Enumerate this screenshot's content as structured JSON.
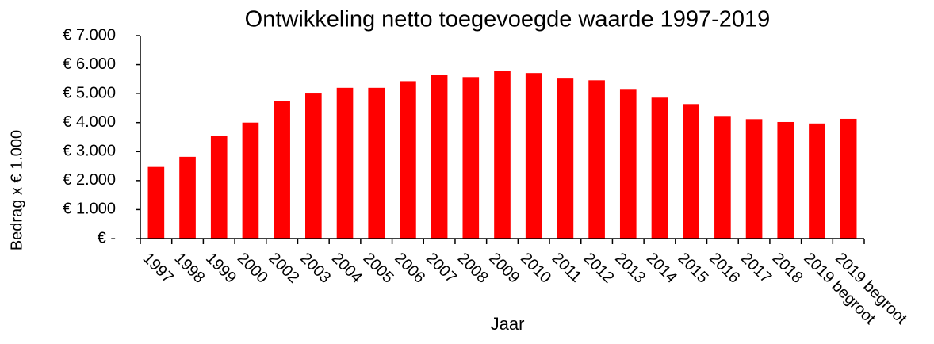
{
  "chart_data": {
    "type": "bar",
    "title": "Ontwikkeling netto toegevoegde waarde 1997-2019",
    "x_label": "Jaar",
    "y_label": "Bedrag x € 1.000",
    "categories": [
      "1997",
      "1998",
      "1999",
      "2000",
      "2002",
      "2003",
      "2004",
      "2005",
      "2006",
      "2007",
      "2008",
      "2009",
      "2010",
      "2011",
      "2012",
      "2013",
      "2014",
      "2015",
      "2016",
      "2017",
      "2018",
      "2019 begroot",
      "2019 begroot"
    ],
    "values": [
      2470,
      2820,
      3550,
      4000,
      4750,
      5030,
      5200,
      5200,
      5430,
      5650,
      5570,
      5790,
      5710,
      5520,
      5460,
      5160,
      4860,
      4640,
      4230,
      4120,
      4020,
      3970,
      4130
    ],
    "color": "#ff0000",
    "ylim": [
      0,
      7000
    ],
    "yticks": [
      {
        "value": 0,
        "label": "€ -"
      },
      {
        "value": 1000,
        "label": "€ 1.000"
      },
      {
        "value": 2000,
        "label": "€ 2.000"
      },
      {
        "value": 3000,
        "label": "€ 3.000"
      },
      {
        "value": 4000,
        "label": "€ 4.000"
      },
      {
        "value": 5000,
        "label": "€ 5.000"
      },
      {
        "value": 6000,
        "label": "€ 6.000"
      },
      {
        "value": 7000,
        "label": "€ 7.000"
      }
    ],
    "grid": false
  }
}
